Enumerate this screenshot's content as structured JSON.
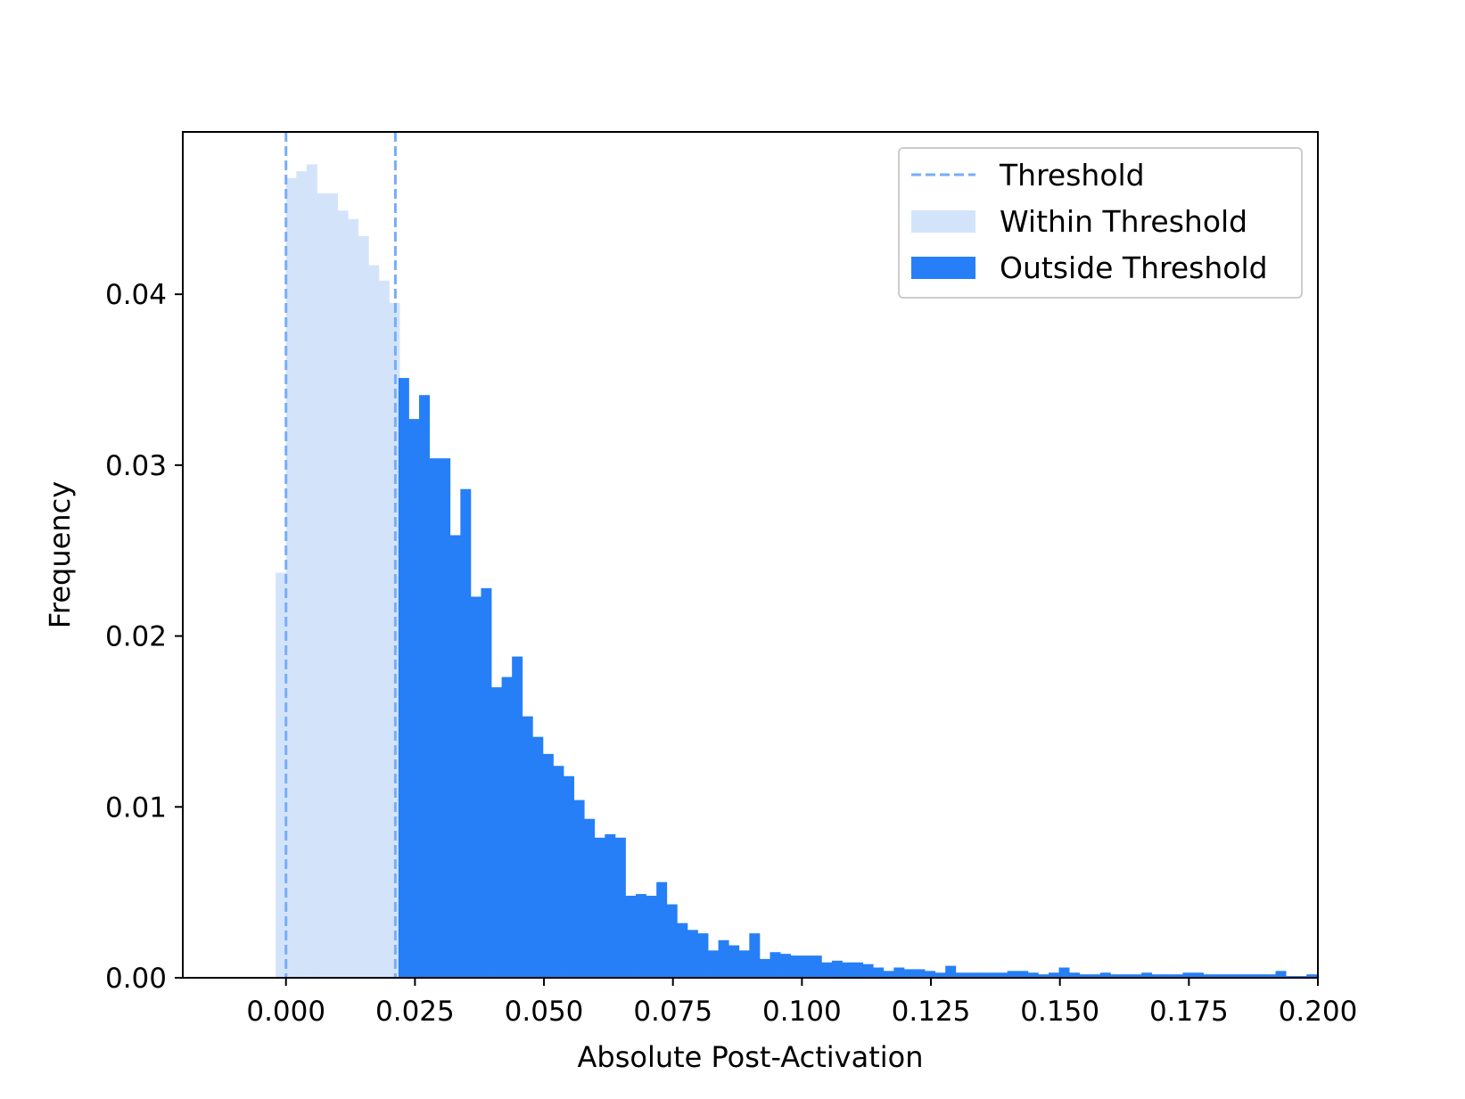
{
  "chart_data": {
    "type": "bar",
    "title": "",
    "xlabel": "Absolute Post-Activation",
    "ylabel": "Frequency",
    "xlim": [
      -0.02,
      0.2
    ],
    "ylim": [
      0,
      0.0495
    ],
    "x_ticks": [
      0.0,
      0.025,
      0.05,
      0.075,
      0.1,
      0.125,
      0.15,
      0.175,
      0.2
    ],
    "x_tick_labels": [
      "0.000",
      "0.025",
      "0.050",
      "0.075",
      "0.100",
      "0.125",
      "0.150",
      "0.175",
      "0.200"
    ],
    "y_ticks": [
      0.0,
      0.01,
      0.02,
      0.03,
      0.04
    ],
    "y_tick_labels": [
      "0.00",
      "0.01",
      "0.02",
      "0.03",
      "0.04"
    ],
    "grid": false,
    "legend_position": "top-right",
    "thresholds": [
      0.0,
      0.0212
    ],
    "bin_width": 0.002,
    "series": [
      {
        "name": "Within Threshold",
        "color": "#d3e4fa",
        "bin_start": -0.002,
        "values": [
          0.0237,
          0.0468,
          0.0472,
          0.0476,
          0.0459,
          0.0459,
          0.0449,
          0.0444,
          0.0434,
          0.0417,
          0.0408,
          0.0395
        ]
      },
      {
        "name": "Outside Threshold",
        "color": "#267ff6",
        "bin_start": 0.0218,
        "values": [
          0.0351,
          0.0327,
          0.0341,
          0.0304,
          0.0304,
          0.0259,
          0.0286,
          0.0223,
          0.0228,
          0.017,
          0.0176,
          0.0188,
          0.0153,
          0.0141,
          0.0131,
          0.0124,
          0.0118,
          0.0104,
          0.0093,
          0.0082,
          0.0084,
          0.0082,
          0.0048,
          0.0049,
          0.0048,
          0.0056,
          0.0043,
          0.0032,
          0.0028,
          0.0026,
          0.0016,
          0.0022,
          0.0019,
          0.0016,
          0.0026,
          0.0011,
          0.0015,
          0.0014,
          0.0013,
          0.0013,
          0.0013,
          0.0009,
          0.001,
          0.0009,
          0.0009,
          0.0008,
          0.0006,
          0.0004,
          0.0006,
          0.0005,
          0.0005,
          0.0004,
          0.0003,
          0.0007,
          0.0003,
          0.0003,
          0.0003,
          0.0003,
          0.0003,
          0.0004,
          0.0004,
          0.0003,
          0.0002,
          0.0003,
          0.0006,
          0.0003,
          0.0002,
          0.0002,
          0.0003,
          0.0002,
          0.0002,
          0.0002,
          0.0003,
          0.0002,
          0.0002,
          0.0002,
          0.0003,
          0.0003,
          0.0002,
          0.0002,
          0.0002,
          0.0002,
          0.0002,
          0.0002,
          0.0002,
          0.0004,
          0.0001,
          0.0001,
          0.0002,
          0.0002,
          0.0002,
          0.0002,
          0.0001,
          0.0002,
          0.0001,
          0.0002,
          0.0003,
          0.0002,
          0.0002,
          0.0001,
          0.0002,
          0.0002,
          0.0001,
          0.0002,
          0.0002,
          0.0001,
          0.0002,
          0.0001,
          0.0001,
          0.0001,
          0.0001,
          0.0001,
          0.0002,
          0.0002
        ]
      }
    ],
    "threshold_line": {
      "name": "Threshold",
      "color": "#77adf6"
    }
  }
}
